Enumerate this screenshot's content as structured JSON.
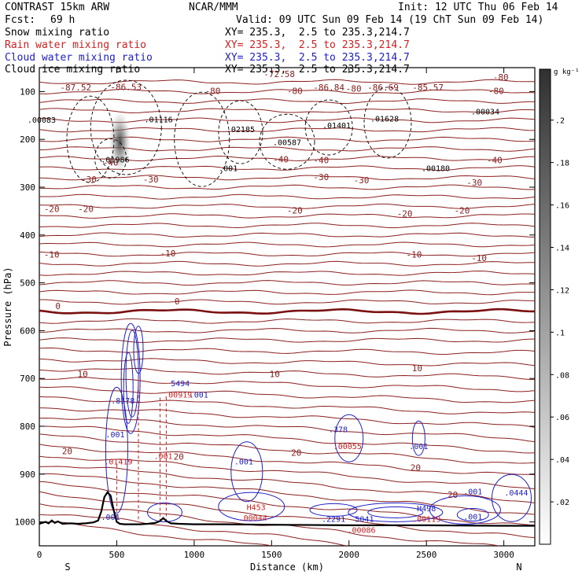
{
  "header": {
    "model": "CONTRAST 15km ARW",
    "center": "NCAR/MMM",
    "init": "Init: 12 UTC Thu 06 Feb 14",
    "fcst_label": "Fcst:",
    "fcst_value": "69 h",
    "valid": "Valid: 09 UTC Sun 09 Feb 14 (19 ChT Sun 09 Feb 14)",
    "fields": [
      {
        "name": "Snow mixing ratio",
        "xy": "XY= 235.3,  2.5 to 235.3,214.7",
        "color": "#000000"
      },
      {
        "name": "Rain water mixing ratio",
        "xy": "XY= 235.3,  2.5 to 235.3,214.7",
        "color": "#d42020"
      },
      {
        "name": "Cloud water mixing ratio",
        "xy": "XY= 235.3,  2.5 to 235.3,214.7",
        "color": "#2020c8"
      },
      {
        "name": "Cloud ice mixing ratio",
        "xy": "XY= 235.3,  2.5 to 235.3,214.7",
        "color": "#000000"
      }
    ]
  },
  "chart_data": {
    "type": "cross-section",
    "xlabel": "Distance (km)",
    "ylabel": "Pressure (hPa)",
    "xlim": [
      0,
      3200
    ],
    "ylim": [
      1050,
      50
    ],
    "x_ticks": [
      0,
      500,
      1000,
      1500,
      2000,
      2500,
      3000
    ],
    "y_ticks": [
      100,
      200,
      300,
      400,
      500,
      600,
      700,
      800,
      900,
      1000
    ],
    "end_labels": {
      "left": "S",
      "right": "N"
    },
    "colorbar": {
      "unit": "g kg⁻¹",
      "ticks": [
        ".02",
        ".04",
        ".06",
        ".08",
        ".1",
        ".12",
        ".14",
        ".16",
        ".18",
        ".2"
      ]
    },
    "temperature_labels": [
      {
        "x": 460,
        "p": 255,
        "text": "-40"
      },
      {
        "x": 1560,
        "p": 248,
        "text": "-40"
      },
      {
        "x": 1820,
        "p": 250,
        "text": "-40"
      },
      {
        "x": 2940,
        "p": 250,
        "text": "-40"
      },
      {
        "x": 320,
        "p": 290,
        "text": "-30"
      },
      {
        "x": 720,
        "p": 290,
        "text": "-30"
      },
      {
        "x": 1820,
        "p": 285,
        "text": "-30"
      },
      {
        "x": 2080,
        "p": 292,
        "text": "-30"
      },
      {
        "x": 2810,
        "p": 297,
        "text": "-30"
      },
      {
        "x": 80,
        "p": 352,
        "text": "-20"
      },
      {
        "x": 300,
        "p": 352,
        "text": "-20"
      },
      {
        "x": 1650,
        "p": 355,
        "text": "-20"
      },
      {
        "x": 2360,
        "p": 362,
        "text": "-20"
      },
      {
        "x": 2730,
        "p": 355,
        "text": "-20"
      },
      {
        "x": 80,
        "p": 447,
        "text": "-10"
      },
      {
        "x": 830,
        "p": 445,
        "text": "-10"
      },
      {
        "x": 2420,
        "p": 447,
        "text": "-10"
      },
      {
        "x": 2840,
        "p": 455,
        "text": "-10"
      },
      {
        "x": 120,
        "p": 555,
        "text": "0"
      },
      {
        "x": 890,
        "p": 545,
        "text": "0"
      },
      {
        "x": 280,
        "p": 697,
        "text": "10"
      },
      {
        "x": 1520,
        "p": 697,
        "text": "10"
      },
      {
        "x": 2440,
        "p": 685,
        "text": "10"
      },
      {
        "x": 180,
        "p": 858,
        "text": "20"
      },
      {
        "x": 900,
        "p": 870,
        "text": "20"
      },
      {
        "x": 1660,
        "p": 862,
        "text": "20"
      },
      {
        "x": 2430,
        "p": 893,
        "text": "20"
      },
      {
        "x": 2670,
        "p": 950,
        "text": "20"
      }
    ],
    "upper_labels": [
      {
        "x": 1550,
        "p": 70,
        "text": "-72.58"
      },
      {
        "x": 2980,
        "p": 76,
        "text": "-80"
      },
      {
        "x": 1120,
        "p": 105,
        "text": "-80"
      },
      {
        "x": 1650,
        "p": 105,
        "text": "-80"
      },
      {
        "x": 2030,
        "p": 100,
        "text": "-80"
      },
      {
        "x": 2950,
        "p": 105,
        "text": "-80"
      },
      {
        "x": 235,
        "p": 98,
        "text": "-87.52"
      },
      {
        "x": 560,
        "p": 97,
        "text": "-86.53"
      },
      {
        "x": 1870,
        "p": 98,
        "text": "-86.84"
      },
      {
        "x": 2220,
        "p": 98,
        "text": "-86.69"
      },
      {
        "x": 2510,
        "p": 98,
        "text": "-85.57"
      }
    ],
    "extrema_labels": [
      {
        "x": 15,
        "p": 165,
        "text": ".00083",
        "color": "#000000"
      },
      {
        "x": 770,
        "p": 164,
        "text": ".01116",
        "color": "#000000"
      },
      {
        "x": 1300,
        "p": 185,
        "text": ".02185",
        "color": "#000000"
      },
      {
        "x": 1600,
        "p": 212,
        "text": ".00587",
        "color": "#000000"
      },
      {
        "x": 1920,
        "p": 177,
        "text": ".01401",
        "color": "#000000"
      },
      {
        "x": 2230,
        "p": 163,
        "text": ".01628",
        "color": "#000000"
      },
      {
        "x": 2880,
        "p": 148,
        "text": ".00034",
        "color": "#000000"
      },
      {
        "x": 490,
        "p": 248,
        "text": ".01986",
        "color": "#000000"
      },
      {
        "x": 1220,
        "p": 266,
        "text": ".001",
        "color": "#000000"
      },
      {
        "x": 2560,
        "p": 266,
        "text": ".00180",
        "color": "#000000"
      },
      {
        "x": 910,
        "p": 716,
        "text": "5494",
        "color": "#2020c8"
      },
      {
        "x": 540,
        "p": 752,
        "text": ".8578",
        "color": "#2020c8"
      },
      {
        "x": 895,
        "p": 740,
        "text": ".00919",
        "color": "#d42020"
      },
      {
        "x": 1030,
        "p": 740,
        "text": ".001",
        "color": "#2020c8"
      },
      {
        "x": 490,
        "p": 823,
        "text": ".001",
        "color": "#2020c8"
      },
      {
        "x": 800,
        "p": 868,
        "text": ".001",
        "color": "#d42020"
      },
      {
        "x": 510,
        "p": 880,
        "text": ".01419",
        "color": "#d42020"
      },
      {
        "x": 1930,
        "p": 812,
        "text": ".378",
        "color": "#2020c8"
      },
      {
        "x": 1990,
        "p": 848,
        "text": ".00055",
        "color": "#d42020"
      },
      {
        "x": 2450,
        "p": 848,
        "text": ".001",
        "color": "#2020c8"
      },
      {
        "x": 1320,
        "p": 880,
        "text": ".001",
        "color": "#2020c8"
      },
      {
        "x": 460,
        "p": 996,
        "text": ".001",
        "color": "#2020c8"
      },
      {
        "x": 1400,
        "p": 975,
        "text": "H453",
        "color": "#d42020"
      },
      {
        "x": 1380,
        "p": 997,
        "text": ".00044",
        "color": "#d42020"
      },
      {
        "x": 1900,
        "p": 1000,
        "text": ".2291",
        "color": "#2020c8"
      },
      {
        "x": 2100,
        "p": 1000,
        "text": "5041",
        "color": "#2020c8"
      },
      {
        "x": 2080,
        "p": 1023,
        "text": ".00086",
        "color": "#d42020"
      },
      {
        "x": 2500,
        "p": 978,
        "text": "H498",
        "color": "#2020c8"
      },
      {
        "x": 2500,
        "p": 1000,
        "text": ".00119",
        "color": "#d42020"
      },
      {
        "x": 2800,
        "p": 942,
        "text": ".001",
        "color": "#2020c8"
      },
      {
        "x": 2800,
        "p": 995,
        "text": ".001",
        "color": "#2020c8"
      },
      {
        "x": 3080,
        "p": 945,
        "text": ".0444",
        "color": "#2020c8"
      }
    ],
    "terrain": {
      "x": [
        0,
        40,
        60,
        80,
        100,
        120,
        150,
        200,
        250,
        300,
        350,
        380,
        400,
        420,
        440,
        460,
        480,
        500,
        520,
        550,
        600,
        650,
        700,
        750,
        780,
        800,
        820,
        850,
        900,
        1000,
        1200,
        1500,
        2000,
        2500,
        3000,
        3200
      ],
      "p": [
        1004,
        1000,
        1003,
        997,
        1002,
        999,
        1004,
        1003,
        1004,
        1003,
        1001,
        997,
        978,
        948,
        938,
        945,
        975,
        1000,
        1004,
        1005,
        1005,
        1005,
        1004,
        1002,
        998,
        992,
        998,
        1003,
        1004,
        1005,
        1005,
        1006,
        1007,
        1007,
        1008,
        1008
      ]
    }
  }
}
